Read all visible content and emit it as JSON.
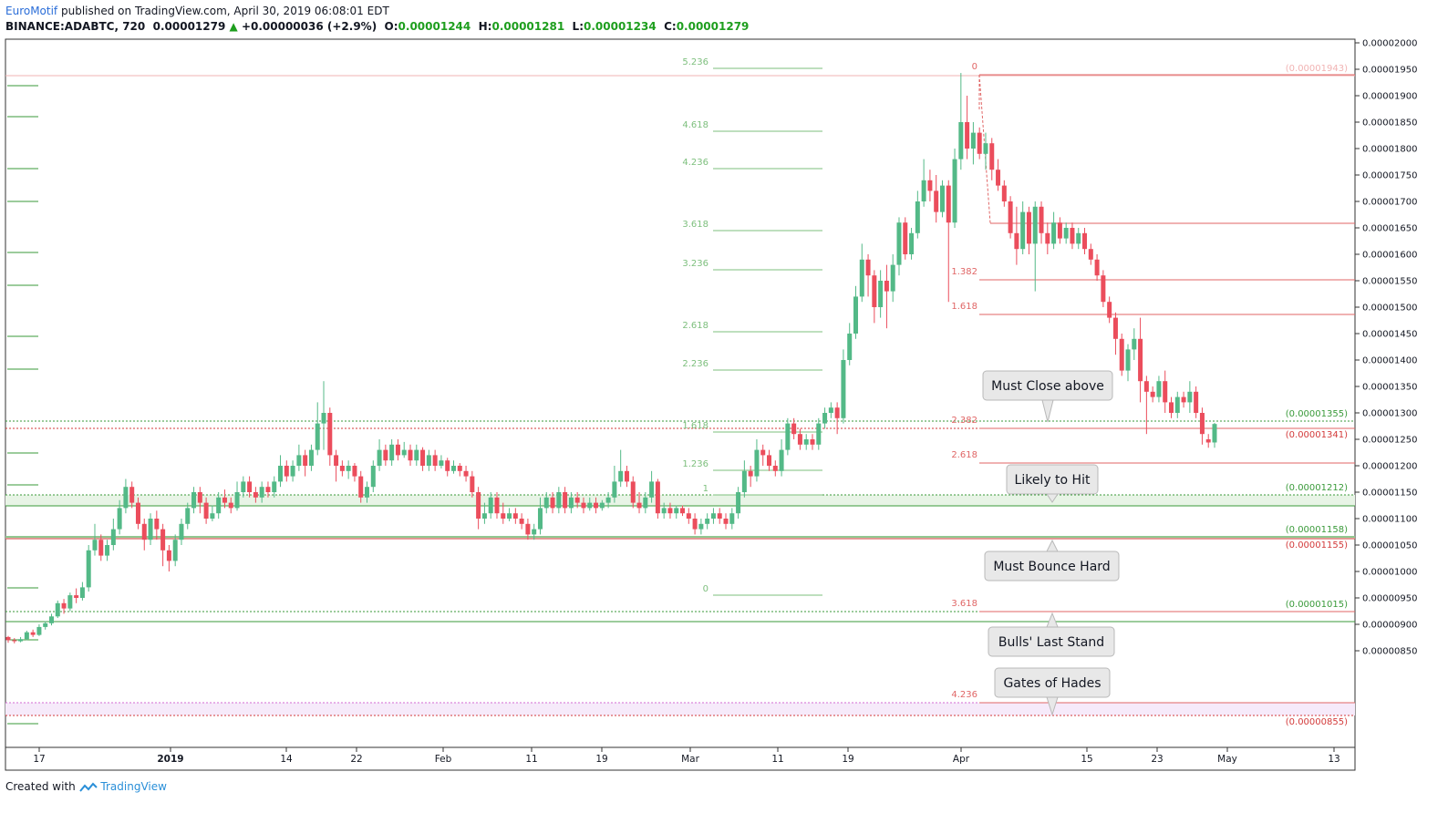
{
  "header": {
    "author": "EuroMotif",
    "published": "published on TradingView.com, April 30, 2019 06:08:01 EDT",
    "symbol": "BINANCE:ADABTC, 720",
    "price": "0.00001279",
    "change": "+0.00000036 (+2.9%)",
    "o_label": "O:",
    "o": "0.00001244",
    "h_label": "H:",
    "h": "0.00001281",
    "l_label": "L:",
    "l": "0.00001234",
    "c_label": "C:",
    "c": "0.00001279"
  },
  "footer": {
    "created": "Created with",
    "brand": "TradingView"
  },
  "colors": {
    "up": "#53b987",
    "down": "#eb4d5c",
    "fibGreen": "#7dbf7d",
    "fibRed": "#e06666",
    "support": "#3a9a3a",
    "resistance": "#d33a3a",
    "callout": "#e8e8e8"
  },
  "chart_data": {
    "type": "candlestick",
    "ylim": [
      8.1e-06,
      2.02e-05
    ],
    "y_ticks": [
      "0.00002000",
      "0.00001950",
      "0.00001900",
      "0.00001850",
      "0.00001800",
      "0.00001750",
      "0.00001700",
      "0.00001650",
      "0.00001600",
      "0.00001550",
      "0.00001500",
      "0.00001450",
      "0.00001400",
      "0.00001350",
      "0.00001300",
      "0.00001250",
      "0.00001200",
      "0.00001150",
      "0.00001100",
      "0.00001050",
      "0.00001000",
      "0.00000950",
      "0.00000900",
      "0.00000850"
    ],
    "x_ticks": [
      "17",
      "2019",
      "14",
      "22",
      "Feb",
      "11",
      "19",
      "Mar",
      "11",
      "19",
      "Apr",
      "15",
      "23",
      "May",
      "13"
    ],
    "horizontal_levels": [
      {
        "price": "0.00001943",
        "color": "#f1b3b3"
      },
      {
        "price": "0.00001355",
        "color": "#3a9a3a"
      },
      {
        "price": "0.00001341",
        "color": "#d33a3a"
      },
      {
        "price": "0.00001212",
        "color": "#3a9a3a"
      },
      {
        "price": "0.00001158",
        "color": "#3a9a3a"
      },
      {
        "price": "0.00001155",
        "color": "#d33a3a"
      },
      {
        "price": "0.00001015",
        "color": "#3a9a3a"
      },
      {
        "price": "0.00000855",
        "color": "#d33a3a"
      }
    ],
    "fib_extension_green": [
      "5.236",
      "4.618",
      "4.236",
      "3.618",
      "3.236",
      "2.618",
      "2.236",
      "1.618",
      "1.236",
      "1",
      "0"
    ],
    "fib_extension_red": [
      "0",
      "1.382",
      "1.618",
      "2.382",
      "2.618",
      "3.618",
      "4.236"
    ],
    "annotations": [
      "Must Close above",
      "Likely to Hit",
      "Must Bounce Hard",
      "Bulls' Last Stand",
      "Gates of Hades"
    ],
    "candles": [
      [
        876,
        870,
        878,
        865
      ],
      [
        870,
        868,
        874,
        864
      ],
      [
        868,
        872,
        876,
        866
      ],
      [
        872,
        885,
        888,
        870
      ],
      [
        885,
        880,
        890,
        876
      ],
      [
        880,
        895,
        900,
        878
      ],
      [
        895,
        902,
        906,
        890
      ],
      [
        902,
        915,
        920,
        898
      ],
      [
        915,
        940,
        945,
        912
      ],
      [
        940,
        930,
        948,
        920
      ],
      [
        930,
        955,
        960,
        925
      ],
      [
        955,
        950,
        968,
        940
      ],
      [
        950,
        970,
        980,
        945
      ],
      [
        970,
        1040,
        1050,
        962
      ],
      [
        1040,
        1060,
        1090,
        1030
      ],
      [
        1060,
        1030,
        1070,
        1020
      ],
      [
        1030,
        1050,
        1060,
        1020
      ],
      [
        1050,
        1080,
        1100,
        1040
      ],
      [
        1080,
        1120,
        1135,
        1070
      ],
      [
        1120,
        1160,
        1175,
        1110
      ],
      [
        1160,
        1130,
        1170,
        1120
      ],
      [
        1130,
        1090,
        1140,
        1080
      ],
      [
        1090,
        1060,
        1100,
        1040
      ],
      [
        1060,
        1100,
        1110,
        1050
      ],
      [
        1100,
        1080,
        1115,
        1060
      ],
      [
        1080,
        1040,
        1090,
        1010
      ],
      [
        1040,
        1020,
        1050,
        1000
      ],
      [
        1020,
        1060,
        1070,
        1010
      ],
      [
        1060,
        1090,
        1100,
        1050
      ],
      [
        1090,
        1120,
        1130,
        1080
      ],
      [
        1120,
        1150,
        1160,
        1110
      ],
      [
        1150,
        1130,
        1160,
        1110
      ],
      [
        1130,
        1100,
        1140,
        1090
      ],
      [
        1100,
        1110,
        1125,
        1095
      ],
      [
        1110,
        1140,
        1150,
        1100
      ],
      [
        1140,
        1130,
        1155,
        1120
      ],
      [
        1130,
        1120,
        1140,
        1110
      ],
      [
        1120,
        1150,
        1170,
        1115
      ],
      [
        1150,
        1170,
        1180,
        1140
      ],
      [
        1170,
        1150,
        1180,
        1140
      ],
      [
        1150,
        1140,
        1160,
        1130
      ],
      [
        1140,
        1160,
        1170,
        1130
      ],
      [
        1160,
        1150,
        1170,
        1140
      ],
      [
        1150,
        1170,
        1180,
        1140
      ],
      [
        1170,
        1200,
        1220,
        1160
      ],
      [
        1200,
        1180,
        1210,
        1170
      ],
      [
        1180,
        1200,
        1210,
        1170
      ],
      [
        1200,
        1220,
        1240,
        1190
      ],
      [
        1220,
        1200,
        1230,
        1180
      ],
      [
        1200,
        1230,
        1240,
        1190
      ],
      [
        1230,
        1280,
        1320,
        1220
      ],
      [
        1280,
        1300,
        1360,
        1230
      ],
      [
        1300,
        1220,
        1310,
        1200
      ],
      [
        1220,
        1200,
        1230,
        1170
      ],
      [
        1200,
        1190,
        1210,
        1180
      ],
      [
        1190,
        1200,
        1210,
        1175
      ],
      [
        1200,
        1180,
        1205,
        1170
      ],
      [
        1180,
        1140,
        1190,
        1130
      ],
      [
        1140,
        1160,
        1170,
        1130
      ],
      [
        1160,
        1200,
        1210,
        1150
      ],
      [
        1200,
        1230,
        1250,
        1190
      ],
      [
        1230,
        1210,
        1240,
        1200
      ],
      [
        1210,
        1240,
        1250,
        1200
      ],
      [
        1240,
        1220,
        1250,
        1210
      ],
      [
        1220,
        1230,
        1245,
        1215
      ],
      [
        1230,
        1210,
        1240,
        1200
      ],
      [
        1210,
        1230,
        1240,
        1200
      ],
      [
        1230,
        1200,
        1235,
        1190
      ],
      [
        1200,
        1220,
        1230,
        1190
      ],
      [
        1220,
        1200,
        1230,
        1190
      ],
      [
        1200,
        1210,
        1220,
        1195
      ],
      [
        1210,
        1190,
        1215,
        1180
      ],
      [
        1190,
        1200,
        1210,
        1185
      ],
      [
        1200,
        1190,
        1205,
        1180
      ],
      [
        1190,
        1180,
        1200,
        1170
      ],
      [
        1180,
        1150,
        1190,
        1140
      ],
      [
        1150,
        1100,
        1160,
        1080
      ],
      [
        1100,
        1110,
        1130,
        1090
      ],
      [
        1110,
        1140,
        1150,
        1100
      ],
      [
        1140,
        1110,
        1150,
        1100
      ],
      [
        1110,
        1100,
        1130,
        1090
      ],
      [
        1100,
        1110,
        1120,
        1095
      ],
      [
        1110,
        1100,
        1120,
        1090
      ],
      [
        1100,
        1090,
        1110,
        1080
      ],
      [
        1090,
        1070,
        1100,
        1060
      ],
      [
        1070,
        1080,
        1090,
        1060
      ],
      [
        1080,
        1120,
        1140,
        1070
      ],
      [
        1120,
        1140,
        1150,
        1110
      ],
      [
        1140,
        1120,
        1150,
        1110
      ],
      [
        1120,
        1150,
        1160,
        1110
      ],
      [
        1150,
        1120,
        1160,
        1110
      ],
      [
        1120,
        1140,
        1150,
        1110
      ],
      [
        1140,
        1130,
        1150,
        1120
      ],
      [
        1130,
        1120,
        1140,
        1110
      ],
      [
        1120,
        1130,
        1140,
        1115
      ],
      [
        1130,
        1120,
        1140,
        1110
      ],
      [
        1120,
        1130,
        1135,
        1115
      ],
      [
        1130,
        1140,
        1150,
        1120
      ],
      [
        1140,
        1170,
        1200,
        1130
      ],
      [
        1170,
        1190,
        1230,
        1160
      ],
      [
        1190,
        1170,
        1200,
        1160
      ],
      [
        1170,
        1130,
        1180,
        1120
      ],
      [
        1130,
        1120,
        1150,
        1110
      ],
      [
        1120,
        1140,
        1150,
        1110
      ],
      [
        1140,
        1170,
        1190,
        1130
      ],
      [
        1170,
        1110,
        1175,
        1100
      ],
      [
        1110,
        1120,
        1130,
        1100
      ],
      [
        1120,
        1110,
        1130,
        1100
      ],
      [
        1110,
        1120,
        1125,
        1100
      ],
      [
        1120,
        1110,
        1125,
        1105
      ],
      [
        1110,
        1100,
        1120,
        1090
      ],
      [
        1100,
        1080,
        1110,
        1070
      ],
      [
        1080,
        1090,
        1100,
        1070
      ],
      [
        1090,
        1100,
        1110,
        1080
      ],
      [
        1100,
        1110,
        1120,
        1090
      ],
      [
        1110,
        1100,
        1120,
        1090
      ],
      [
        1100,
        1090,
        1110,
        1080
      ],
      [
        1090,
        1110,
        1120,
        1080
      ],
      [
        1110,
        1150,
        1160,
        1100
      ],
      [
        1150,
        1190,
        1210,
        1140
      ],
      [
        1190,
        1180,
        1200,
        1160
      ],
      [
        1180,
        1230,
        1250,
        1170
      ],
      [
        1230,
        1220,
        1240,
        1200
      ],
      [
        1220,
        1200,
        1230,
        1190
      ],
      [
        1200,
        1190,
        1210,
        1180
      ],
      [
        1190,
        1230,
        1250,
        1180
      ],
      [
        1230,
        1280,
        1290,
        1220
      ],
      [
        1280,
        1260,
        1290,
        1250
      ],
      [
        1260,
        1240,
        1270,
        1230
      ],
      [
        1240,
        1250,
        1260,
        1230
      ],
      [
        1250,
        1240,
        1260,
        1230
      ],
      [
        1240,
        1280,
        1290,
        1230
      ],
      [
        1280,
        1300,
        1310,
        1270
      ],
      [
        1300,
        1310,
        1320,
        1290
      ],
      [
        1310,
        1290,
        1320,
        1260
      ],
      [
        1290,
        1400,
        1420,
        1280
      ],
      [
        1400,
        1450,
        1470,
        1390
      ],
      [
        1450,
        1520,
        1540,
        1440
      ],
      [
        1520,
        1590,
        1620,
        1510
      ],
      [
        1590,
        1560,
        1600,
        1520
      ],
      [
        1560,
        1500,
        1570,
        1470
      ],
      [
        1500,
        1550,
        1570,
        1480
      ],
      [
        1550,
        1530,
        1580,
        1460
      ],
      [
        1530,
        1580,
        1600,
        1510
      ],
      [
        1580,
        1660,
        1670,
        1560
      ],
      [
        1660,
        1600,
        1670,
        1590
      ],
      [
        1600,
        1640,
        1650,
        1590
      ],
      [
        1640,
        1700,
        1720,
        1630
      ],
      [
        1700,
        1740,
        1780,
        1690
      ],
      [
        1740,
        1720,
        1760,
        1700
      ],
      [
        1720,
        1680,
        1750,
        1660
      ],
      [
        1680,
        1730,
        1740,
        1670
      ],
      [
        1730,
        1660,
        1740,
        1510
      ],
      [
        1660,
        1780,
        1800,
        1650
      ],
      [
        1780,
        1850,
        1943,
        1760
      ],
      [
        1850,
        1800,
        1900,
        1780
      ],
      [
        1800,
        1830,
        1850,
        1770
      ],
      [
        1830,
        1790,
        1840,
        1780
      ],
      [
        1790,
        1810,
        1830,
        1760
      ],
      [
        1810,
        1760,
        1820,
        1740
      ],
      [
        1760,
        1730,
        1780,
        1720
      ],
      [
        1730,
        1700,
        1740,
        1690
      ],
      [
        1700,
        1640,
        1710,
        1630
      ],
      [
        1640,
        1610,
        1690,
        1580
      ],
      [
        1610,
        1680,
        1700,
        1600
      ],
      [
        1680,
        1620,
        1690,
        1600
      ],
      [
        1620,
        1690,
        1700,
        1530
      ],
      [
        1690,
        1640,
        1700,
        1620
      ],
      [
        1640,
        1620,
        1660,
        1600
      ],
      [
        1620,
        1660,
        1680,
        1610
      ],
      [
        1660,
        1630,
        1670,
        1620
      ],
      [
        1630,
        1650,
        1660,
        1620
      ],
      [
        1650,
        1620,
        1660,
        1610
      ],
      [
        1620,
        1640,
        1650,
        1610
      ],
      [
        1640,
        1610,
        1650,
        1600
      ],
      [
        1610,
        1590,
        1620,
        1580
      ],
      [
        1590,
        1560,
        1600,
        1550
      ],
      [
        1560,
        1510,
        1570,
        1500
      ],
      [
        1510,
        1480,
        1520,
        1470
      ],
      [
        1480,
        1440,
        1490,
        1410
      ],
      [
        1440,
        1380,
        1450,
        1370
      ],
      [
        1380,
        1420,
        1430,
        1360
      ],
      [
        1420,
        1440,
        1460,
        1400
      ],
      [
        1440,
        1360,
        1480,
        1320
      ],
      [
        1360,
        1340,
        1370,
        1260
      ],
      [
        1340,
        1330,
        1350,
        1320
      ],
      [
        1330,
        1360,
        1370,
        1320
      ],
      [
        1360,
        1320,
        1380,
        1300
      ],
      [
        1320,
        1300,
        1330,
        1290
      ],
      [
        1300,
        1330,
        1340,
        1290
      ],
      [
        1330,
        1320,
        1340,
        1310
      ],
      [
        1320,
        1340,
        1360,
        1300
      ],
      [
        1340,
        1300,
        1350,
        1290
      ],
      [
        1300,
        1260,
        1310,
        1240
      ],
      [
        1250,
        1244,
        1260,
        1234
      ],
      [
        1244,
        1279,
        1281,
        1234
      ]
    ]
  }
}
